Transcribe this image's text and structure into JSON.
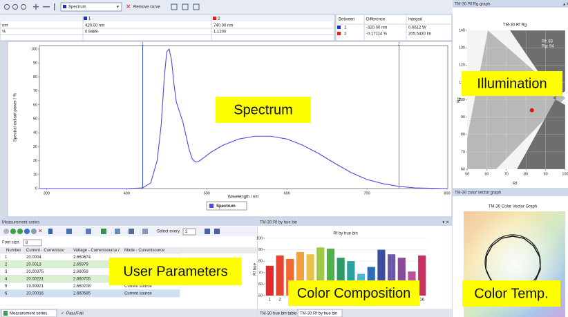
{
  "toolbar": {
    "curve": "Spectrum",
    "remove": "Remove curve"
  },
  "cursor_table": {
    "headers": [
      "1",
      "2"
    ],
    "rows": [
      [
        "nm",
        "420.00 nm",
        "740.00 nm"
      ],
      [
        "%",
        "0.9489",
        "1.1200"
      ]
    ]
  },
  "diff_table": {
    "headers": [
      "Between",
      "Difference",
      "Integral"
    ],
    "rows": [
      [
        "1",
        "-320.00 nm",
        "0.6612 W"
      ],
      [
        "2",
        "-0.17114 %",
        "205.5430 lm"
      ]
    ]
  },
  "panels": {
    "rfrg": "TM-30 Rf Rg graph",
    "vector": "TM-30 color vector graph",
    "series": "Measurement series",
    "hue": "TM-30 Rf by hue bin"
  },
  "vector_title": "TM-30 Color Vector Graph",
  "series_tools": {
    "select": "Select every",
    "every": "2",
    "font": "Font size:",
    "size": "8"
  },
  "series_table": {
    "columns": [
      "Number",
      "Current - Currentsou",
      "Voltage - Currentsource /",
      "Mode - Currentsource"
    ],
    "rows": [
      [
        "1",
        "20.0004",
        "2.660674"
      ],
      [
        "2",
        "20.0013",
        "2.65979"
      ],
      [
        "3",
        "20.00375",
        "2.66059"
      ],
      [
        "4",
        "20.00231",
        "2.660705"
      ],
      [
        "5",
        "19.99921",
        "2.660208",
        "Current source"
      ],
      [
        "6",
        "20.00016",
        "2.660585",
        "Current source"
      ]
    ]
  },
  "tabs": {
    "left": [
      "Measurement series",
      "Pass/Fail"
    ],
    "middle": [
      "TM-30 hue bin table",
      "TM-30 Rf by hue bin"
    ]
  },
  "overlays": [
    "Spectrum",
    "Illumination",
    "User Parameters",
    "Color Composition",
    "Color Temp."
  ],
  "chart_data": [
    {
      "type": "line",
      "xlabel": "Wavelength / nm",
      "ylabel": "Spectral radiant power / %",
      "xlim": [
        291,
        800
      ],
      "ylim": [
        0,
        100
      ],
      "xticks": [
        300,
        400,
        500,
        600,
        700,
        800
      ],
      "yticks": [
        0,
        10,
        20,
        30,
        40,
        50,
        60,
        70,
        80,
        90,
        100
      ],
      "grid": false,
      "x": [
        291,
        400,
        420,
        430,
        438,
        443,
        447,
        450,
        453,
        456,
        459,
        462,
        466,
        470,
        474,
        478,
        482,
        486,
        490,
        496,
        505,
        520,
        540,
        560,
        580,
        600,
        620,
        640,
        660,
        680,
        700,
        720,
        740,
        760,
        780,
        800
      ],
      "series": [
        {
          "name": "Spectrum",
          "color": "#4a4ae0",
          "values": [
            0,
            0,
            0.5,
            4,
            20,
            45,
            80,
            98,
            100,
            92,
            75,
            62,
            55,
            48,
            38,
            28,
            21,
            19,
            19.5,
            22,
            26,
            31,
            35.5,
            37.5,
            37.5,
            35.5,
            31,
            25,
            18,
            11.5,
            6.5,
            3.5,
            1.5,
            0.5,
            0.2,
            0
          ]
        }
      ],
      "cursors": [
        {
          "label": "1",
          "x": 420,
          "color": "#3a50c8"
        },
        {
          "label": "2",
          "x": 740,
          "color": "#e05050"
        }
      ]
    },
    {
      "type": "scatter",
      "title": "TM-30 Rf Rg",
      "xlabel": "Rf",
      "ylabel": "Rg",
      "xlim": [
        50,
        100
      ],
      "ylim": [
        60,
        140
      ],
      "xticks": [
        50,
        60,
        70,
        80,
        90,
        100
      ],
      "yticks": [
        60,
        70,
        80,
        90,
        100,
        110,
        120,
        130,
        140
      ],
      "grid": true,
      "x": [
        83
      ],
      "values": [
        94
      ],
      "color": "#e81010",
      "annotations": [
        "Rf: 83",
        "Rg: 94"
      ]
    },
    {
      "type": "bar",
      "title": "Rf by hue bin",
      "ylabel": "Rf hue",
      "ylim": [
        50,
        100
      ],
      "yticks": [
        50,
        60,
        70,
        80,
        90,
        100
      ],
      "grid": true,
      "categories": [
        "1",
        "2",
        "3",
        "4",
        "5",
        "6",
        "7",
        "8",
        "9",
        "10",
        "11",
        "12",
        "13",
        "14",
        "15",
        "16"
      ],
      "values": [
        76,
        85,
        82,
        88,
        86,
        92,
        91,
        83,
        80,
        69,
        75,
        90,
        86,
        83,
        71,
        85
      ],
      "colors": [
        "#e3292b",
        "#e5452f",
        "#ef6a32",
        "#f3a13a",
        "#e8c24a",
        "#9ec84a",
        "#4fb04c",
        "#2e9a6a",
        "#2aa0a0",
        "#4ab6d6",
        "#2f6cb4",
        "#3d4f9c",
        "#6a58a8",
        "#8a4a9c",
        "#b8509a",
        "#c83060"
      ]
    }
  ]
}
